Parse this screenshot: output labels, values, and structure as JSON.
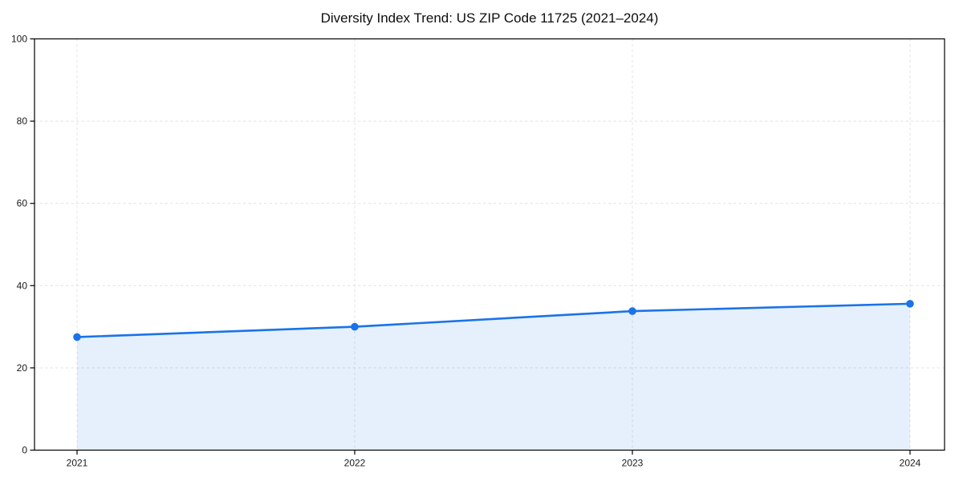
{
  "chart_data": {
    "type": "line",
    "title": "Diversity Index Trend: US ZIP Code 11725 (2021–2024)",
    "x": [
      2021,
      2022,
      2023,
      2024
    ],
    "values": [
      27.5,
      30.0,
      33.8,
      35.6
    ],
    "xlabel": "",
    "ylabel": "",
    "ylim": [
      0,
      100
    ],
    "yticks": [
      0,
      20,
      40,
      60,
      80,
      100
    ],
    "grid": true,
    "grid_style": "dashed",
    "legend": "none",
    "area_fill": true,
    "marker": "circle",
    "colors": {
      "line": "#1a73e8",
      "marker": "#1a73e8",
      "area": "rgba(26,115,232,0.11)",
      "grid": "#e4e4e4",
      "frame": "#000000",
      "title": "#0d0d0d",
      "tick_label": "#1a1a1a",
      "background": "#ffffff"
    }
  }
}
